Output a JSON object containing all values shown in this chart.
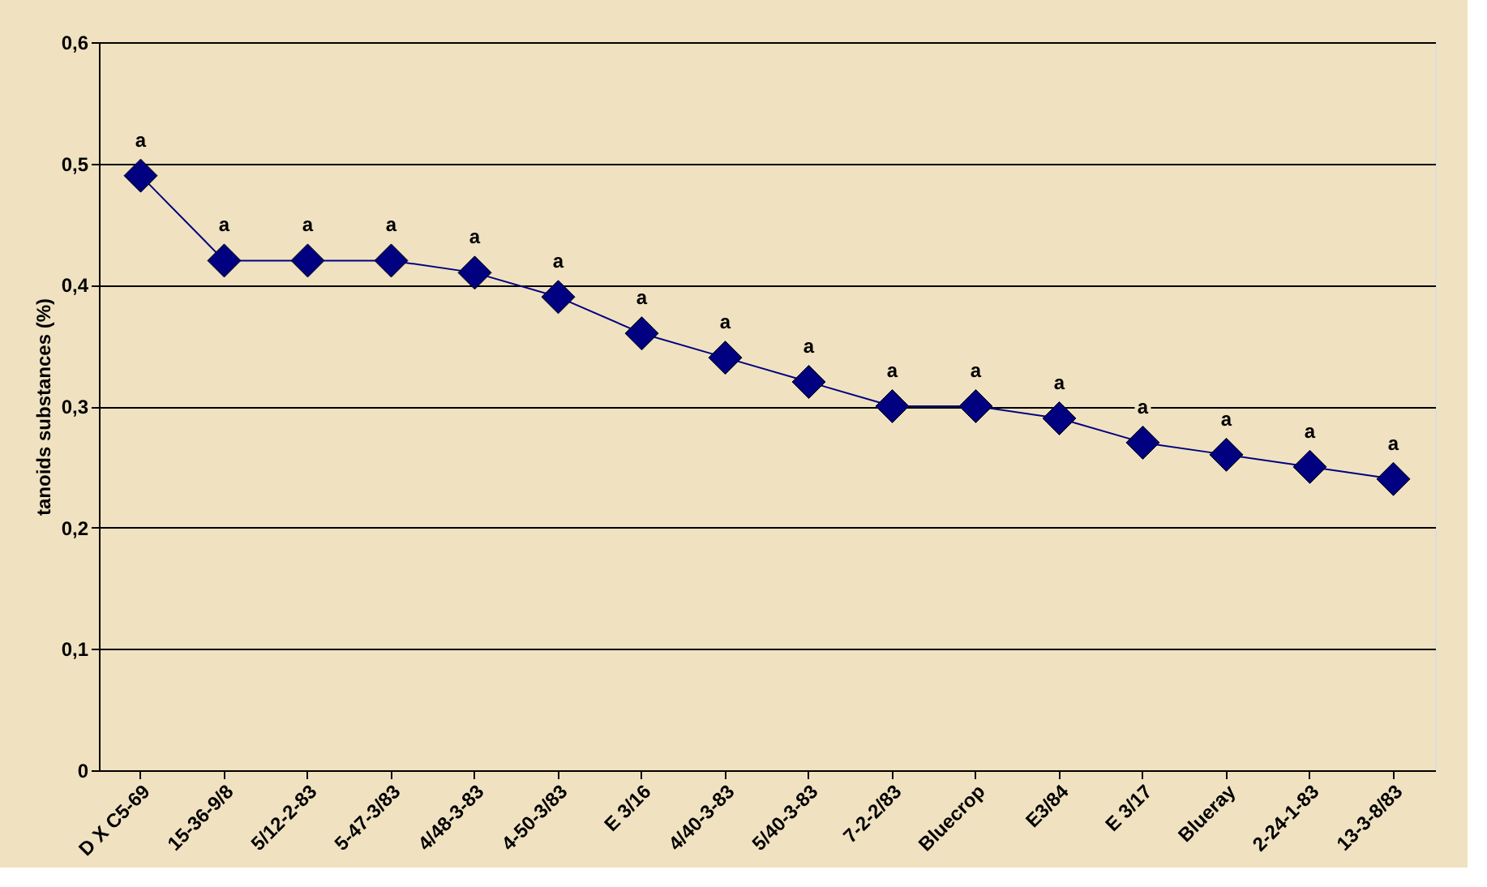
{
  "chart_data": {
    "type": "line",
    "ylabel": "tanoids substances (%)",
    "categories": [
      "D X C5-69",
      "15-36-9/8",
      "5/12-2-83",
      "5-47-3/83",
      "4/48-3-83",
      "4-50-3/83",
      "E 3/16",
      "4/40-3-83",
      "5/40-3-83",
      "7-2-2/83",
      "Bluecrop",
      "E3/84",
      "E 3/17",
      "Blueray",
      "2-24-1-83",
      "13-3-8/83"
    ],
    "series": [
      {
        "color": "#000080",
        "values": [
          0.49,
          0.42,
          0.42,
          0.42,
          0.41,
          0.39,
          0.36,
          0.34,
          0.32,
          0.3,
          0.3,
          0.29,
          0.27,
          0.26,
          0.25,
          0.24
        ],
        "value_labels": [
          "a",
          "a",
          "a",
          "a",
          "a",
          "a",
          "a",
          "a",
          "a",
          "a",
          "a",
          "a",
          "a",
          "a",
          "a",
          "a"
        ]
      }
    ],
    "ylim": [
      0,
      0.6
    ],
    "yticks": [
      0,
      {
        "value": 0.1,
        "label": "0,1"
      },
      {
        "value": 0.2,
        "label": "0,2"
      },
      {
        "value": 0.3,
        "label": "0,3"
      },
      {
        "value": 0.4,
        "label": "0,4"
      },
      {
        "value": 0.5,
        "label": "0,5"
      },
      {
        "value": 0.6,
        "label": "0,6"
      }
    ],
    "grid": "y",
    "marker": "diamond",
    "line_style": "solid"
  }
}
